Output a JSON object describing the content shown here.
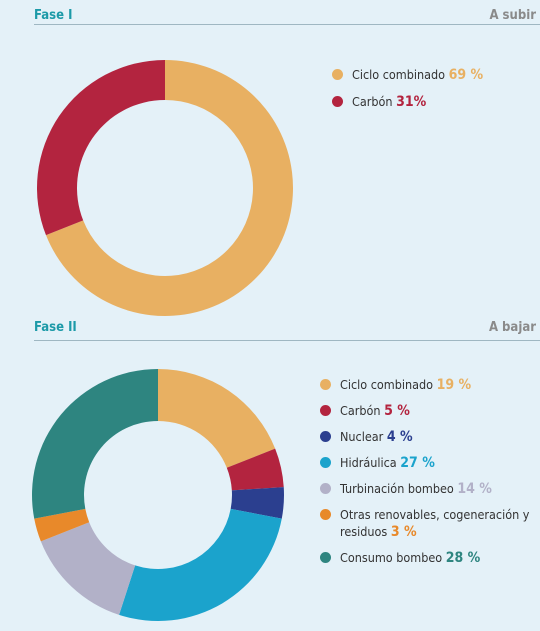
{
  "chart_data": [
    {
      "type": "donut",
      "title": "Fase I",
      "annotation": "A subir",
      "categories": [
        "Ciclo combinado",
        "Carbón"
      ],
      "values": [
        69,
        31
      ],
      "value_labels": [
        "69 %",
        "31%"
      ],
      "colors": [
        "#e8b062",
        "#b3243f"
      ]
    },
    {
      "type": "donut",
      "title": "Fase II",
      "annotation": "A bajar",
      "categories": [
        "Ciclo combinado",
        "Carbón",
        "Nuclear",
        "Hidráulica",
        "Turbinación bombeo",
        "Otras renovables, cogeneración y residuos",
        "Consumo bombeo"
      ],
      "values": [
        19,
        5,
        4,
        27,
        14,
        3,
        28
      ],
      "value_labels": [
        "19 %",
        "5 %",
        "4 %",
        "27 %",
        "14 %",
        "3 %",
        "28 %"
      ],
      "colors": [
        "#e8b062",
        "#b3243f",
        "#2b3f8f",
        "#1ba3cc",
        "#b2b1c8",
        "#e8892a",
        "#2e8580"
      ]
    }
  ]
}
